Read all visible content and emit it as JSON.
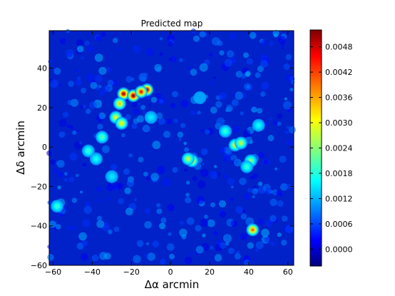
{
  "chart_data": {
    "type": "heatmap",
    "title": "Predicted map",
    "xlabel": "Δα arcmin",
    "ylabel": "Δδ arcmin",
    "xlim": [
      -62,
      63
    ],
    "ylim": [
      -60,
      59
    ],
    "xticks": [
      -60,
      -40,
      -20,
      0,
      20,
      40,
      60
    ],
    "xtick_labels": [
      "−60",
      "−40",
      "−20",
      "0",
      "20",
      "40",
      "60"
    ],
    "yticks": [
      -60,
      -40,
      -20,
      0,
      20,
      40
    ],
    "ytick_labels": [
      "−60",
      "−40",
      "−20",
      "0",
      "20",
      "40"
    ],
    "colorbar": {
      "colormap": "jet",
      "range": [
        -0.0004,
        0.0052
      ],
      "ticks": [
        0.0,
        0.0006,
        0.0012,
        0.0018,
        0.0024,
        0.003,
        0.0036,
        0.0042,
        0.0048
      ],
      "tick_labels": [
        "0.0000",
        "0.0006",
        "0.0012",
        "0.0018",
        "0.0024",
        "0.0030",
        "0.0036",
        "0.0042",
        "0.0048"
      ]
    },
    "grid": false,
    "peaks": [
      {
        "x": -24,
        "y": 27,
        "value": 0.005
      },
      {
        "x": -19,
        "y": 26,
        "value": 0.0052
      },
      {
        "x": -12,
        "y": 29,
        "value": 0.0051
      },
      {
        "x": -15,
        "y": 28,
        "value": 0.0045
      },
      {
        "x": -26,
        "y": 22,
        "value": 0.0034
      },
      {
        "x": -28,
        "y": 15,
        "value": 0.003
      },
      {
        "x": -25,
        "y": 12,
        "value": 0.0032
      },
      {
        "x": -35,
        "y": 5,
        "value": 0.0022
      },
      {
        "x": -42,
        "y": -2,
        "value": 0.002
      },
      {
        "x": -38,
        "y": -6,
        "value": 0.0018
      },
      {
        "x": -30,
        "y": -15,
        "value": 0.0016
      },
      {
        "x": 11,
        "y": -7,
        "value": 0.0033
      },
      {
        "x": 9,
        "y": -6,
        "value": 0.0028
      },
      {
        "x": 33,
        "y": 1,
        "value": 0.003
      },
      {
        "x": 36,
        "y": 2,
        "value": 0.0028
      },
      {
        "x": 28,
        "y": 8,
        "value": 0.002
      },
      {
        "x": 41,
        "y": -7,
        "value": 0.0025
      },
      {
        "x": 39,
        "y": -10,
        "value": 0.002
      },
      {
        "x": 42,
        "y": -42,
        "value": 0.004
      },
      {
        "x": -58,
        "y": -30,
        "value": 0.002
      },
      {
        "x": 45,
        "y": 11,
        "value": 0.0018
      },
      {
        "x": -10,
        "y": 15,
        "value": 0.0016
      },
      {
        "x": 15,
        "y": 25,
        "value": 0.0012
      }
    ]
  }
}
